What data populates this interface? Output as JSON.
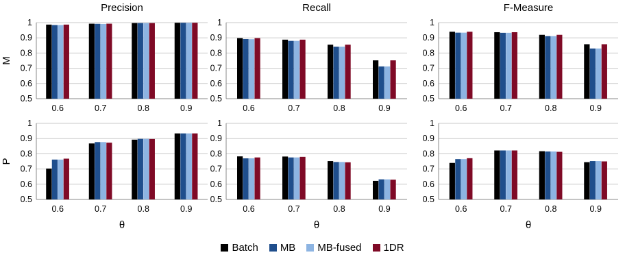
{
  "legend": {
    "items": [
      {
        "label": "Batch",
        "color": "#000000"
      },
      {
        "label": "MB",
        "color": "#1f4e8c"
      },
      {
        "label": "MB-fused",
        "color": "#8db4e2"
      },
      {
        "label": "1DR",
        "color": "#7f0a26"
      }
    ]
  },
  "chart_data": [
    {
      "type": "bar",
      "title": "Precision",
      "row_label": "M",
      "xlabel": "",
      "categories": [
        "0.6",
        "0.7",
        "0.8",
        "0.9"
      ],
      "ylim": [
        0.5,
        1
      ],
      "yticks": [
        "0.5",
        "0.6",
        "0.7",
        "0.8",
        "0.9",
        "1"
      ],
      "grid": true,
      "series": [
        {
          "name": "Batch",
          "values": [
            0.987,
            0.993,
            0.997,
            0.999
          ]
        },
        {
          "name": "MB",
          "values": [
            0.984,
            0.992,
            0.997,
            0.999
          ]
        },
        {
          "name": "MB-fused",
          "values": [
            0.984,
            0.991,
            0.997,
            0.999
          ]
        },
        {
          "name": "1DR",
          "values": [
            0.987,
            0.993,
            0.997,
            0.999
          ]
        }
      ]
    },
    {
      "type": "bar",
      "title": "Recall",
      "row_label": "",
      "xlabel": "",
      "categories": [
        "0.6",
        "0.7",
        "0.8",
        "0.9"
      ],
      "ylim": [
        0.5,
        1
      ],
      "yticks": [
        "0.5",
        "0.6",
        "0.7",
        "0.8",
        "0.9",
        "1"
      ],
      "grid": true,
      "series": [
        {
          "name": "Batch",
          "values": [
            0.898,
            0.888,
            0.855,
            0.752
          ]
        },
        {
          "name": "MB",
          "values": [
            0.892,
            0.88,
            0.842,
            0.712
          ]
        },
        {
          "name": "MB-fused",
          "values": [
            0.891,
            0.88,
            0.842,
            0.712
          ]
        },
        {
          "name": "1DR",
          "values": [
            0.898,
            0.888,
            0.855,
            0.752
          ]
        }
      ]
    },
    {
      "type": "bar",
      "title": "F-Measure",
      "row_label": "",
      "xlabel": "",
      "categories": [
        "0.6",
        "0.7",
        "0.8",
        "0.9"
      ],
      "ylim": [
        0.5,
        1
      ],
      "yticks": [
        "0.5",
        "0.6",
        "0.7",
        "0.8",
        "0.9",
        "1"
      ],
      "grid": true,
      "series": [
        {
          "name": "Batch",
          "values": [
            0.94,
            0.937,
            0.92,
            0.858
          ]
        },
        {
          "name": "MB",
          "values": [
            0.934,
            0.933,
            0.911,
            0.83
          ]
        },
        {
          "name": "MB-fused",
          "values": [
            0.934,
            0.933,
            0.911,
            0.83
          ]
        },
        {
          "name": "1DR",
          "values": [
            0.94,
            0.937,
            0.92,
            0.858
          ]
        }
      ]
    },
    {
      "type": "bar",
      "title": "",
      "row_label": "P",
      "xlabel": "θ",
      "categories": [
        "0.6",
        "0.7",
        "0.8",
        "0.9"
      ],
      "ylim": [
        0.5,
        1
      ],
      "yticks": [
        "0.5",
        "0.6",
        "0.7",
        "0.8",
        "0.9",
        "1"
      ],
      "grid": true,
      "series": [
        {
          "name": "Batch",
          "values": [
            0.703,
            0.868,
            0.893,
            0.934
          ]
        },
        {
          "name": "MB",
          "values": [
            0.762,
            0.877,
            0.898,
            0.934
          ]
        },
        {
          "name": "MB-fused",
          "values": [
            0.762,
            0.877,
            0.898,
            0.934
          ]
        },
        {
          "name": "1DR",
          "values": [
            0.768,
            0.873,
            0.897,
            0.934
          ]
        }
      ]
    },
    {
      "type": "bar",
      "title": "",
      "row_label": "",
      "xlabel": "θ",
      "categories": [
        "0.6",
        "0.7",
        "0.8",
        "0.9"
      ],
      "ylim": [
        0.5,
        1
      ],
      "yticks": [
        "0.5",
        "0.6",
        "0.7",
        "0.8",
        "0.9",
        "1"
      ],
      "grid": true,
      "series": [
        {
          "name": "Batch",
          "values": [
            0.783,
            0.782,
            0.752,
            0.622
          ]
        },
        {
          "name": "MB",
          "values": [
            0.77,
            0.776,
            0.746,
            0.632
          ]
        },
        {
          "name": "MB-fused",
          "values": [
            0.77,
            0.776,
            0.746,
            0.632
          ]
        },
        {
          "name": "1DR",
          "values": [
            0.776,
            0.78,
            0.744,
            0.63
          ]
        }
      ]
    },
    {
      "type": "bar",
      "title": "",
      "row_label": "",
      "xlabel": "θ",
      "categories": [
        "0.6",
        "0.7",
        "0.8",
        "0.9"
      ],
      "ylim": [
        0.5,
        1
      ],
      "yticks": [
        "0.5",
        "0.6",
        "0.7",
        "0.8",
        "0.9",
        "1"
      ],
      "grid": true,
      "series": [
        {
          "name": "Batch",
          "values": [
            0.74,
            0.822,
            0.817,
            0.745
          ]
        },
        {
          "name": "MB",
          "values": [
            0.765,
            0.822,
            0.815,
            0.752
          ]
        },
        {
          "name": "MB-fused",
          "values": [
            0.765,
            0.822,
            0.815,
            0.752
          ]
        },
        {
          "name": "1DR",
          "values": [
            0.771,
            0.822,
            0.813,
            0.75
          ]
        }
      ]
    }
  ]
}
